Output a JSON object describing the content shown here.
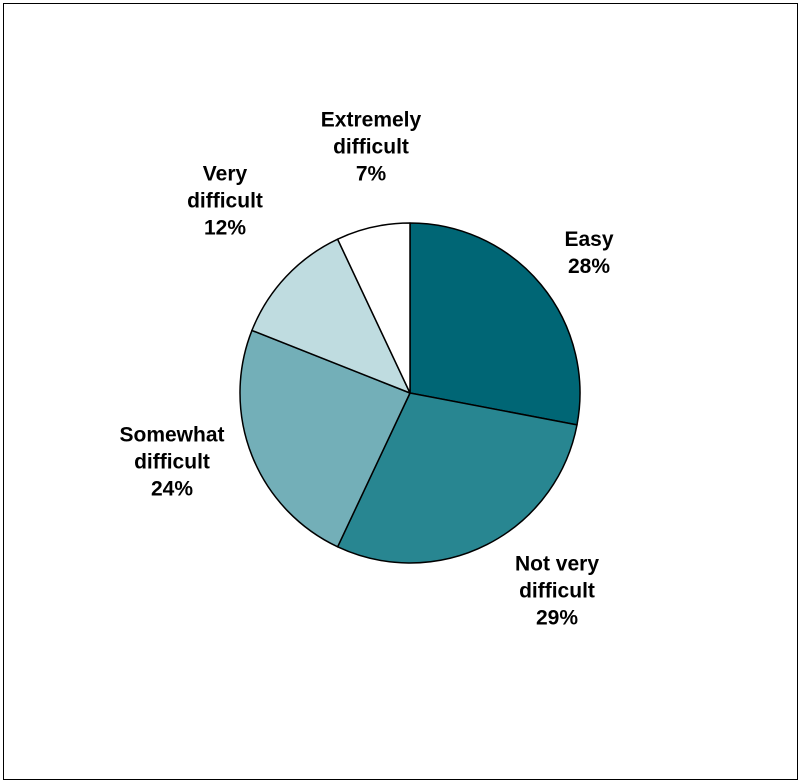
{
  "chart_data": {
    "type": "pie",
    "slices": [
      {
        "label_lines": [
          "Easy"
        ],
        "value": 28,
        "value_label": "28%",
        "color": "#006675"
      },
      {
        "label_lines": [
          "Not very",
          "difficult"
        ],
        "value": 29,
        "value_label": "29%",
        "color": "#288691"
      },
      {
        "label_lines": [
          "Somewhat",
          "difficult"
        ],
        "value": 24,
        "value_label": "24%",
        "color": "#73AFB8"
      },
      {
        "label_lines": [
          "Very",
          "difficult"
        ],
        "value": 12,
        "value_label": "12%",
        "color": "#BFDCE0"
      },
      {
        "label_lines": [
          "Extremely",
          "difficult"
        ],
        "value": 7,
        "value_label": "7%",
        "color": "#FFFFFF"
      }
    ],
    "start_angle": "12 o'clock",
    "direction": "clockwise",
    "legend": "none",
    "stroke_color": "#000000"
  }
}
